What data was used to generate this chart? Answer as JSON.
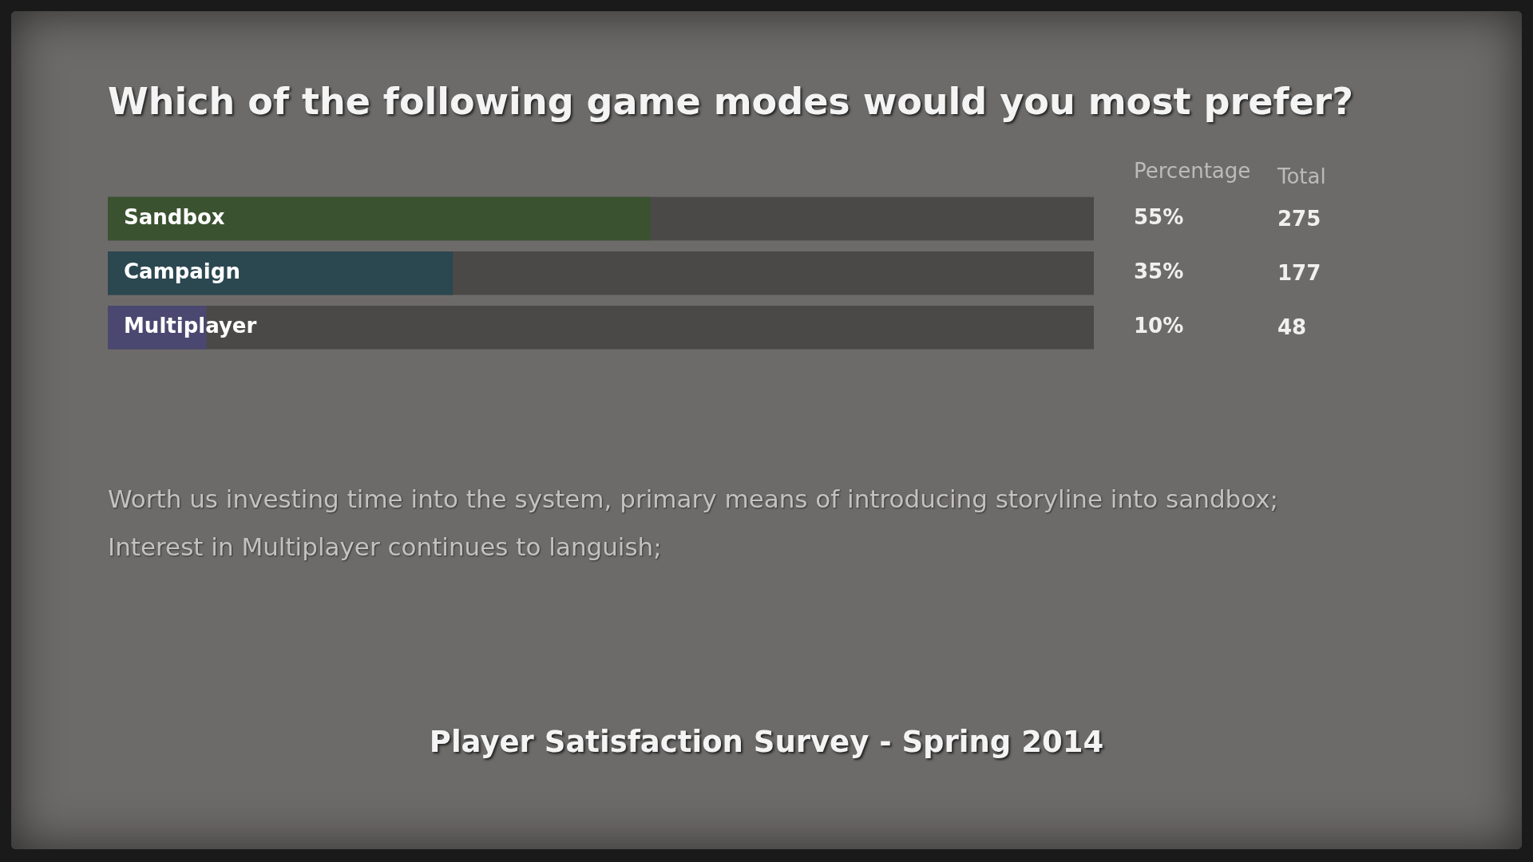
{
  "chart_data": [
    {
      "type": "bar",
      "orientation": "horizontal",
      "title": "Which of the following game modes would you most prefer?",
      "subtitle": "Player Satisfaction Survey - Spring 2014",
      "categories": [
        "Sandbox",
        "Campaign",
        "Multiplayer"
      ],
      "values": [
        55,
        35,
        10
      ],
      "colors": [
        "#3b5230",
        "#2b4750",
        "#4a4870"
      ],
      "value_labels": [
        "55%",
        "35%",
        "10%"
      ],
      "xlim": [
        0,
        100
      ],
      "tick_labels": "y",
      "legend": false,
      "annotations": [
        "Percentage",
        "Worth us investing time into the system, primary means of introducing storyline into sandbox;",
        "Interest in Multiplayer continues to languish;"
      ]
    },
    {
      "type": "other",
      "title": "Total",
      "categories": [
        null,
        null,
        null
      ],
      "values": [
        275,
        177,
        48
      ],
      "data_labels": true
    }
  ]
}
